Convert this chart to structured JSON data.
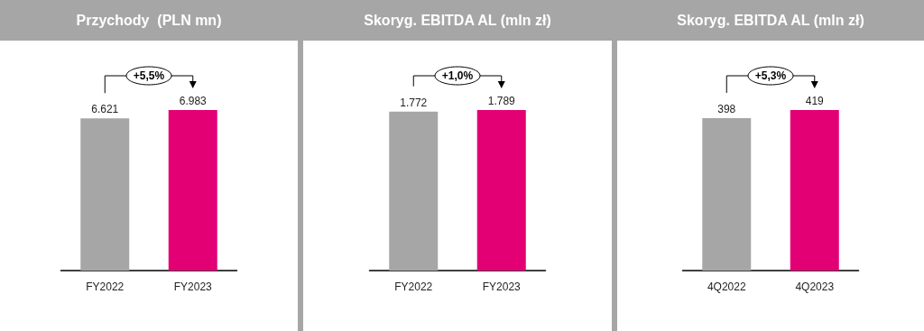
{
  "chart_data": [
    {
      "type": "bar",
      "title": "Przychody  (PLN mn)",
      "categories": [
        "FY2022",
        "FY2023"
      ],
      "values": [
        6621,
        6983
      ],
      "colors": [
        "#a6a6a6",
        "#e20074"
      ],
      "value_labels": [
        "6.621",
        "6.983"
      ],
      "annotations": [
        "+5,5%"
      ]
    },
    {
      "type": "bar",
      "title": "Skoryg. EBITDA AL (mln zł)",
      "categories": [
        "FY2022",
        "FY2023"
      ],
      "values": [
        1772,
        1789
      ],
      "colors": [
        "#a6a6a6",
        "#e20074"
      ],
      "value_labels": [
        "1.772",
        "1.789"
      ],
      "annotations": [
        "+1,0%"
      ]
    },
    {
      "type": "bar",
      "title": "Skoryg. EBITDA AL (mln zł)",
      "categories": [
        "4Q2022",
        "4Q2023"
      ],
      "values": [
        398,
        419
      ],
      "colors": [
        "#a6a6a6",
        "#e20074"
      ],
      "value_labels": [
        "398",
        "419"
      ],
      "annotations": [
        "+5,3%"
      ]
    }
  ]
}
